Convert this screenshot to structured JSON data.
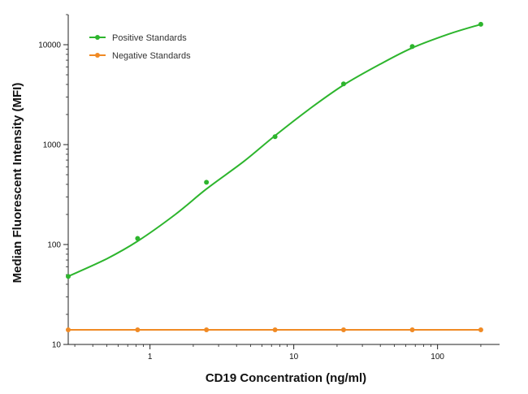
{
  "chart_data": {
    "type": "line",
    "xscale": "log",
    "yscale": "log",
    "xlabel": "CD19 Concentration (ng/ml)",
    "ylabel": "Median  Fluorescent Intensity  (MFI)",
    "xlim": [
      0.27,
      270
    ],
    "ylim": [
      10,
      20000
    ],
    "xticks": [
      1,
      10,
      100
    ],
    "xtick_labels": [
      "1",
      "10",
      "100"
    ],
    "yticks": [
      10,
      100,
      1000,
      10000
    ],
    "ytick_labels": [
      "10",
      "100",
      "1000",
      "10000"
    ],
    "grid": false,
    "legend_position": "top-left",
    "series": [
      {
        "name": "Positive Standards",
        "color": "#2db52d",
        "x": [
          0.27,
          0.82,
          2.47,
          7.41,
          22.2,
          66.7,
          200
        ],
        "y": [
          48,
          115,
          420,
          1200,
          4050,
          9600,
          16000
        ],
        "fit_x": [
          0.27,
          0.5,
          0.82,
          1.5,
          2.47,
          4.5,
          7.41,
          13,
          22.2,
          40,
          66.7,
          120,
          200
        ],
        "fit_y": [
          48,
          72,
          108,
          200,
          360,
          680,
          1230,
          2300,
          3950,
          6400,
          9300,
          12800,
          16000
        ]
      },
      {
        "name": "Negative Standards",
        "color": "#f08a24",
        "x": [
          0.27,
          0.82,
          2.47,
          7.41,
          22.2,
          66.7,
          200
        ],
        "y": [
          14,
          14,
          14,
          14,
          14,
          14,
          14
        ]
      }
    ]
  }
}
